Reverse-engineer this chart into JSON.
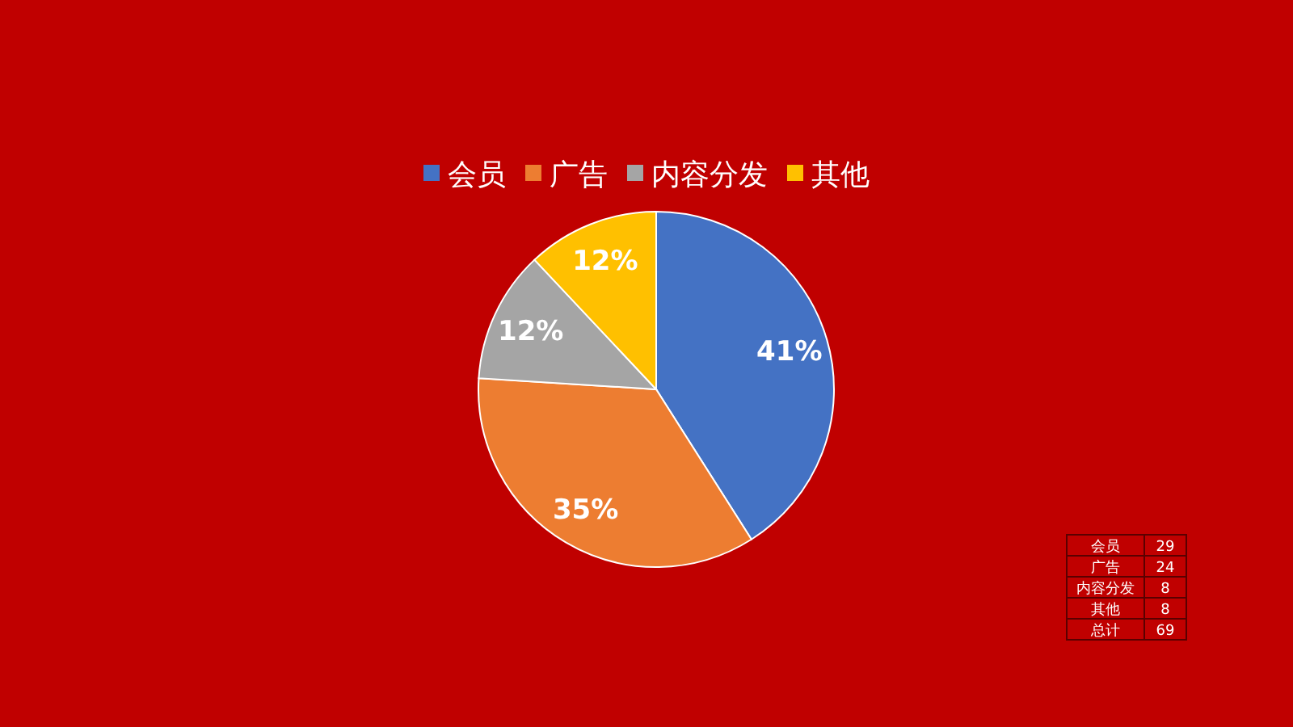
{
  "chart_data": [
    {
      "type": "pie",
      "categories": [
        "会员",
        "广告",
        "内容分发",
        "其他"
      ],
      "values": [
        41,
        35,
        12,
        12
      ],
      "colors": [
        "#4472c4",
        "#ed7d31",
        "#a5a5a5",
        "#ffc000"
      ],
      "value_labels": [
        "41%",
        "35%",
        "12%",
        "12%"
      ],
      "legend": "top"
    },
    {
      "type": "other",
      "annotations": [
        "会员",
        "29",
        "广告",
        "24",
        "内容分发",
        "8",
        "其他",
        "8",
        "总计",
        "69"
      ]
    }
  ]
}
